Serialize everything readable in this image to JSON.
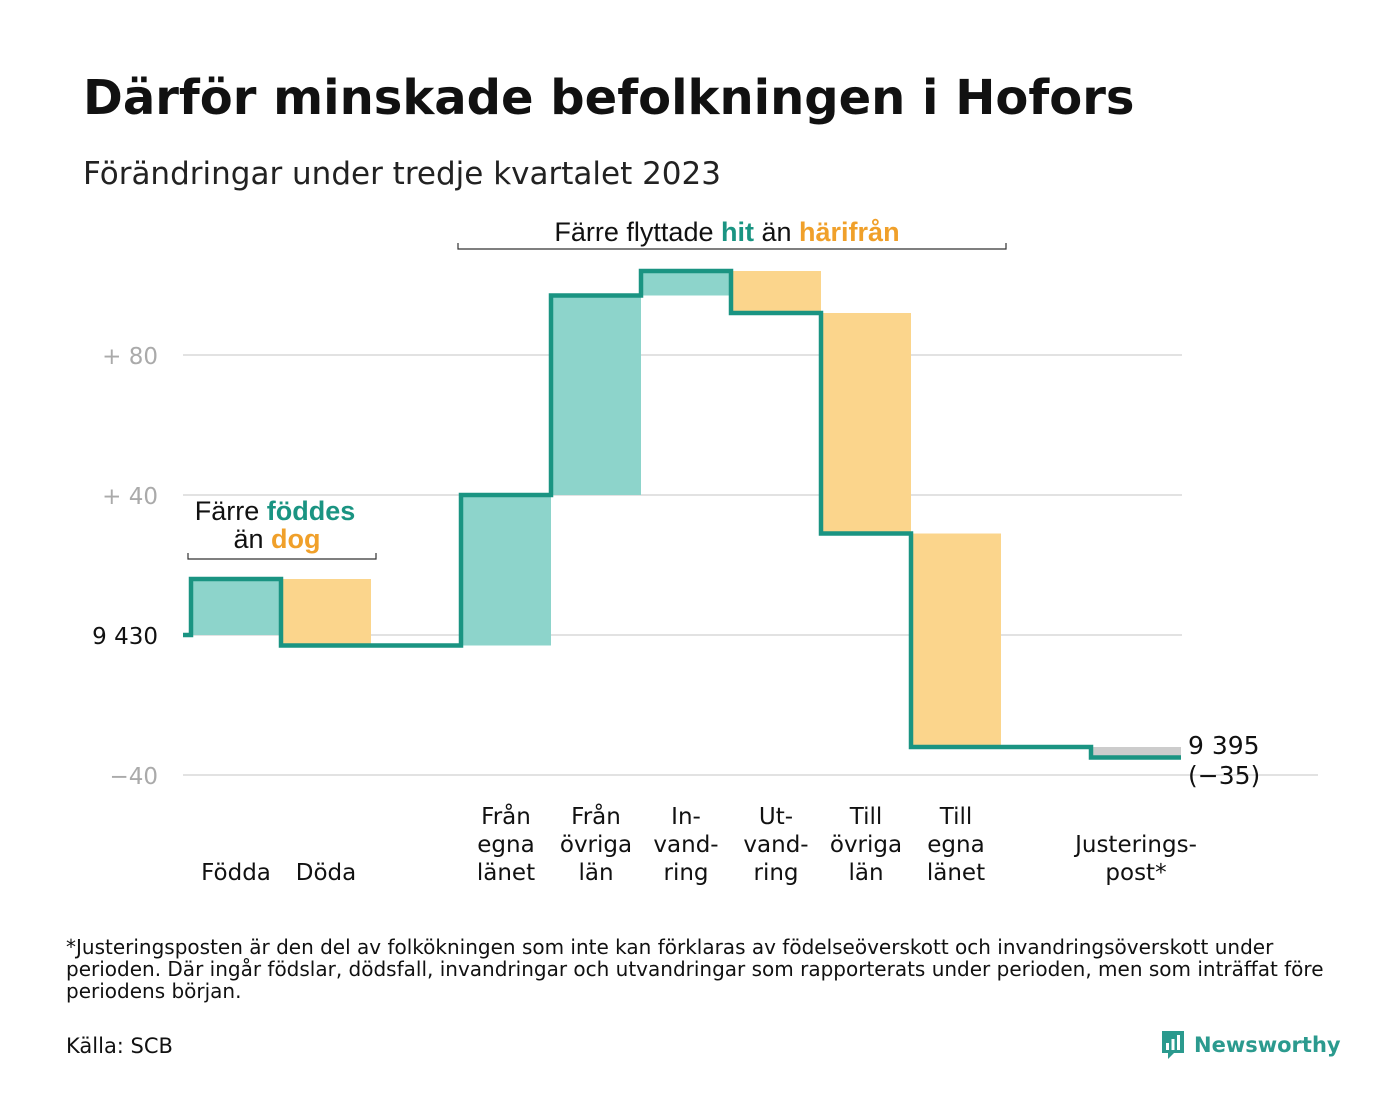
{
  "header": {
    "title": "Därför minskade befolkningen i Hofors",
    "subtitle": "Förändringar under tredje kvartalet 2023"
  },
  "chart_data": {
    "type": "waterfall",
    "title": "Därför minskade befolkningen i Hofors",
    "subtitle": "Förändringar under tredje kvartalet 2023",
    "start_value": 9430,
    "end_value": "9 395",
    "end_change": "(−35)",
    "y_tick_labels": [
      {
        "value": 80,
        "label": "+  80"
      },
      {
        "value": 40,
        "label": "+  40"
      },
      {
        "value": 0,
        "label": "9  430"
      },
      {
        "value": -40,
        "label": "−40"
      }
    ],
    "ylim": [
      -40,
      105
    ],
    "grid": true,
    "steps": [
      {
        "label": [
          "Födda"
        ],
        "change": 16,
        "kind": "in"
      },
      {
        "label": [
          "Döda"
        ],
        "change": -19,
        "kind": "out"
      },
      {
        "label": [],
        "change": 0,
        "kind": "none"
      },
      {
        "label": [
          "Från",
          "egna",
          "länet"
        ],
        "change": 43,
        "kind": "in"
      },
      {
        "label": [
          "Från",
          "övriga",
          "län"
        ],
        "change": 57,
        "kind": "in"
      },
      {
        "label": [
          "In-",
          "vand-",
          "ring"
        ],
        "change": 7,
        "kind": "in"
      },
      {
        "label": [
          "Ut-",
          "vand-",
          "ring"
        ],
        "change": -12,
        "kind": "out"
      },
      {
        "label": [
          "Till",
          "övriga",
          "län"
        ],
        "change": -63,
        "kind": "out"
      },
      {
        "label": [
          "Till",
          "egna",
          "länet"
        ],
        "change": -61,
        "kind": "out"
      },
      {
        "label": [],
        "change": 0,
        "kind": "none"
      },
      {
        "label": [
          "Justerings-",
          "post*"
        ],
        "change": -3,
        "kind": "adjust"
      }
    ],
    "annotations": {
      "births": {
        "line1_prefix": "Färre ",
        "line1_highlight": "föddes",
        "line2_prefix": "än ",
        "line2_highlight": "dog"
      },
      "migration": {
        "prefix": "Färre flyttade ",
        "highlight1": "hit",
        "middle": " än ",
        "highlight2": "härifrån"
      }
    },
    "colors": {
      "in": "#8dd4cb",
      "out": "#fbd58c",
      "adjust": "#cccccc",
      "line": "#1a9482",
      "in_text": "#1a9482",
      "out_text": "#f0a02a",
      "grid": "#e2e2e2",
      "tick": "#aaaaaa"
    }
  },
  "footer": {
    "footnote": "*Justeringsposten är den del av folkökningen som inte kan förklaras av födelseöverskott och invandringsöverskott under perioden. Där ingår födslar, dödsfall, invandringar och utvandringar som rapporterats under perioden, men som inträffat före periodens början.",
    "source": "Källa: SCB",
    "logo_text": "Newsworthy"
  }
}
